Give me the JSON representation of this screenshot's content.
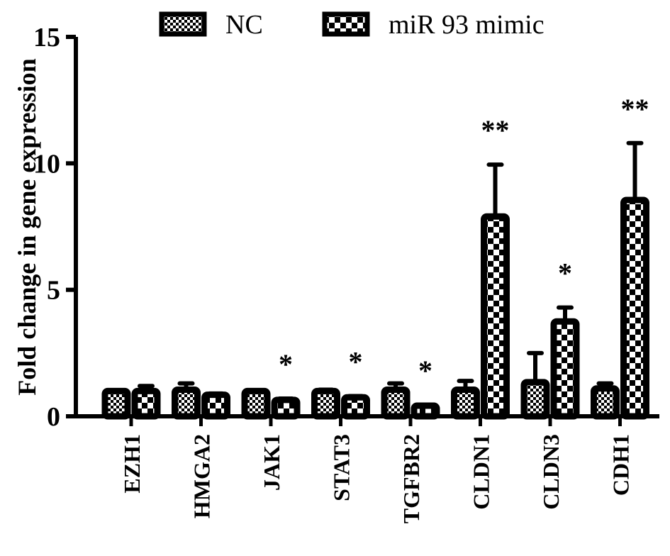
{
  "chart_data": {
    "type": "bar",
    "ylabel": "Fold change in gene expression",
    "xlabel": "",
    "ylim": [
      0,
      15
    ],
    "yticks": [
      0,
      5,
      10,
      15
    ],
    "grid": false,
    "legend_position": "top",
    "categories": [
      "EZH1",
      "HMGA2",
      "JAK1",
      "STAT3",
      "TGFBR2",
      "CLDN1",
      "CLDN3",
      "CDH1"
    ],
    "series": [
      {
        "name": "NC",
        "pattern": "fine-checker",
        "values": [
          1.0,
          1.05,
          1.0,
          1.0,
          1.05,
          1.05,
          1.35,
          1.1
        ],
        "error_upper": [
          1.0,
          1.3,
          1.0,
          1.05,
          1.3,
          1.4,
          2.5,
          1.3
        ]
      },
      {
        "name": "miR 93 mimic",
        "pattern": "coarse-checker",
        "values": [
          1.0,
          0.85,
          0.65,
          0.75,
          0.42,
          7.9,
          3.75,
          8.55
        ],
        "error_upper": [
          1.2,
          0.9,
          0.7,
          0.8,
          0.45,
          9.95,
          4.3,
          10.8
        ]
      }
    ],
    "annotations": [
      "",
      "",
      "*",
      "*",
      "*",
      "**",
      "*",
      "**"
    ],
    "colors": {
      "ink": "#000000",
      "background": "#ffffff"
    }
  }
}
